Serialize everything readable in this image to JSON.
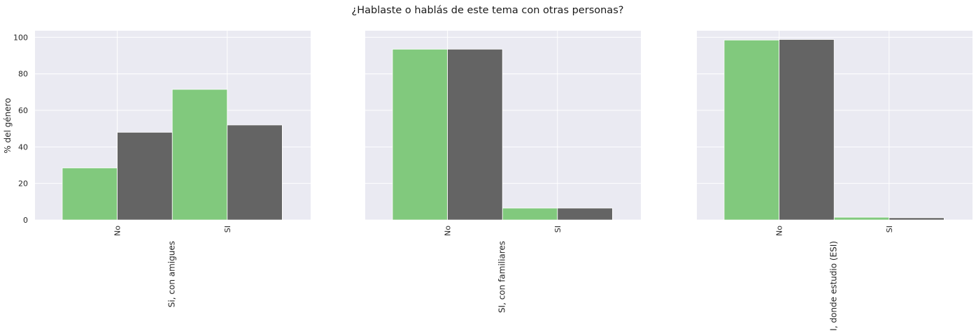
{
  "figure": {
    "title": "¿Hablaste o hablás de este tema con otras personas?",
    "ylabel": "% del género"
  },
  "colors": {
    "panel_background": "#eaeaf2",
    "grid": "#ffffff",
    "series": [
      "#81c97d",
      "#646464"
    ]
  },
  "chart_data": [
    {
      "type": "bar",
      "xlabel": "Si, con amigues",
      "ylabel": "% del género",
      "categories": [
        "No",
        "SI"
      ],
      "series": [
        {
          "values": [
            28.5,
            71.5
          ]
        },
        {
          "values": [
            48.0,
            52.0
          ]
        }
      ],
      "ylim": [
        0,
        103.6
      ],
      "yticks": [
        0,
        20,
        40,
        60,
        80,
        100
      ],
      "grid": true,
      "legend": "none"
    },
    {
      "type": "bar",
      "xlabel": "SI, con familiares",
      "ylabel": "",
      "categories": [
        "No",
        "SI"
      ],
      "series": [
        {
          "values": [
            93.5,
            6.5
          ]
        },
        {
          "values": [
            93.5,
            6.5
          ]
        }
      ],
      "ylim": [
        0,
        103.6
      ],
      "yticks": [
        0,
        20,
        40,
        60,
        80,
        100
      ],
      "grid": true,
      "legend": "none"
    },
    {
      "type": "bar",
      "xlabel": "SI, donde estudio (ESI)",
      "ylabel": "",
      "categories": [
        "No",
        "SI"
      ],
      "series": [
        {
          "values": [
            98.5,
            1.5
          ]
        },
        {
          "values": [
            98.8,
            1.2
          ]
        }
      ],
      "ylim": [
        0,
        103.6
      ],
      "yticks": [
        0,
        20,
        40,
        60,
        80,
        100
      ],
      "grid": true,
      "legend": "none"
    }
  ]
}
